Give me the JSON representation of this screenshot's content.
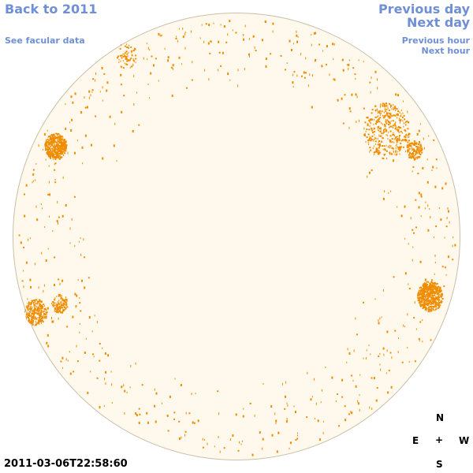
{
  "nav": {
    "back_to": "Back to 2011",
    "see_facular": "See facular data",
    "previous_day": "Previous day",
    "next_day": "Next day",
    "previous_hour": "Previous hour",
    "next_hour": "Next hour"
  },
  "timestamp": "2011-03-06T22:58:60",
  "compass": {
    "north": "N",
    "south": "S",
    "east": "E",
    "west": "W",
    "center": "+"
  },
  "colors": {
    "disk": "#fef9ec",
    "facula": "#ef8c00",
    "link": "#6f8fd6"
  }
}
